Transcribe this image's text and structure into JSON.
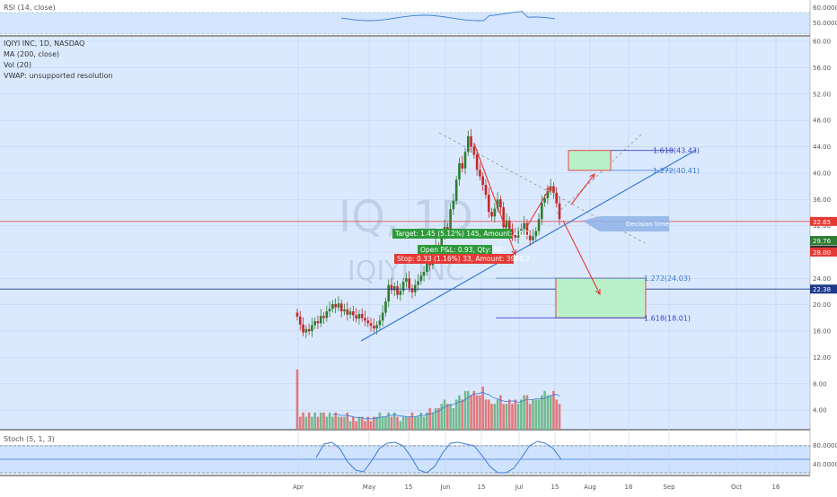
{
  "rsi_panel": {
    "label": "RSI (14, close)",
    "ticks": [
      "60.0000",
      "50.0000"
    ]
  },
  "legend": {
    "title": "IQIYI INC, 1D, NASDAQ",
    "lines": [
      "MA (200, close)",
      "Vol (20)",
      "VWAP: unsupported resolution"
    ]
  },
  "watermark": {
    "ticker": "IQ, 1D",
    "company": "IQIYI INC"
  },
  "price_ticks": [
    "60.00",
    "56.00",
    "52.00",
    "48.00",
    "44.00",
    "40.00",
    "36.00",
    "32.00",
    "28.00",
    "24.00",
    "20.00",
    "16.00",
    "12.00",
    "8.00",
    "4.00"
  ],
  "price_badges": [
    {
      "text": "32.65",
      "color": "#e53935",
      "value": 32.65
    },
    {
      "text": "29.76",
      "color": "#2e7d32",
      "value": 29.76
    },
    {
      "text": "28.33",
      "color": "#333333",
      "value": 28.33
    },
    {
      "text": "28.00",
      "color": "#e53935",
      "value": 28.0
    },
    {
      "text": "22.38",
      "color": "#1e3a8a",
      "value": 22.38
    }
  ],
  "annotations": {
    "target": "Target: 1.45 (5.12%) 145, Amount: 40.0",
    "open_pl": "Open P&L: 0.93, Qty: 60",
    "stop": "Stop: 0.33 (1.16%) 33, Amount: 3980.2",
    "decision": "Decision time",
    "fib_up_1": "1.618(43.43)",
    "fib_up_2": "1.272(40.41)",
    "fib_down_1": "1.272(24.03)",
    "fib_down_2": "1.618(18.01)"
  },
  "stoch_panel": {
    "label": "Stoch (5, 1, 3)",
    "ticks": [
      "80.0000",
      "40.0000"
    ]
  },
  "time_axis": [
    "Apr",
    "May",
    "15",
    "Jun",
    "15",
    "Jul",
    "15",
    "Aug",
    "16",
    "Sep",
    "Oct",
    "16"
  ],
  "colors": {
    "up": "#2e7d32",
    "down": "#c62828",
    "trendline": "#3a7bd5",
    "panel_bg": "#cfe3ff"
  },
  "chart_data": {
    "type": "candlestick",
    "title": "IQIYI INC, 1D, NASDAQ",
    "ylim": [
      0,
      62
    ],
    "y_ticks": [
      4,
      8,
      12,
      16,
      20,
      24,
      28,
      32,
      36,
      40,
      44,
      48,
      52,
      56,
      60
    ],
    "price_series": [
      18.2,
      17.0,
      15.8,
      16.3,
      16.0,
      16.9,
      17.5,
      17.2,
      18.3,
      18.0,
      19.0,
      19.4,
      20.1,
      19.6,
      20.2,
      19.0,
      19.3,
      18.5,
      19.0,
      18.4,
      17.9,
      18.6,
      18.0,
      17.6,
      17.2,
      16.8,
      16.4,
      16.9,
      17.6,
      18.8,
      20.5,
      23.0,
      22.2,
      22.8,
      21.5,
      22.1,
      23.5,
      24.0,
      22.5,
      21.9,
      23.0,
      23.6,
      24.4,
      25.0,
      26.5,
      26.0,
      27.8,
      28.9,
      28.1,
      30.5,
      31.8,
      31.2,
      34.5,
      35.8,
      39.0,
      41.5,
      40.7,
      43.2,
      45.6,
      44.0,
      42.8,
      40.5,
      39.5,
      38.2,
      36.7,
      34.1,
      33.4,
      34.6,
      36.0,
      34.8,
      31.8,
      32.8,
      31.5,
      30.6,
      30.2,
      31.2,
      31.5,
      32.4,
      30.5,
      29.8,
      30.4,
      31.2,
      33.0,
      35.5,
      36.2,
      37.3,
      38.0,
      37.0,
      35.4,
      33.0
    ],
    "volume_series": [
      14,
      3,
      4,
      3,
      4,
      3,
      4,
      3,
      4,
      4,
      3,
      4,
      3,
      4,
      3,
      3,
      3,
      4,
      2,
      3,
      2,
      3,
      3,
      2,
      3,
      2,
      3,
      3,
      4,
      3,
      3,
      4,
      3,
      4,
      3,
      2,
      3,
      3,
      3,
      4,
      3,
      3,
      4,
      3,
      4,
      5,
      4,
      5,
      5,
      6,
      7,
      6,
      6,
      5,
      7,
      8,
      7,
      9,
      9,
      8,
      9,
      8,
      8,
      10,
      7,
      7,
      6,
      6,
      7,
      8,
      6,
      6,
      7,
      6,
      7,
      6,
      7,
      8,
      8,
      6,
      7,
      7,
      7,
      8,
      9,
      8,
      8,
      9,
      7,
      6
    ],
    "trendline": {
      "start": 14.5,
      "end": 43.5
    },
    "targets": {
      "upper": [
        40.41,
        43.43
      ],
      "lower": [
        18.01,
        24.03
      ]
    },
    "rsi": {
      "ylim": [
        40,
        70
      ],
      "ticks": [
        50,
        60
      ]
    },
    "stoch": {
      "ylim": [
        0,
        100
      ],
      "ticks": [
        40,
        80
      ]
    }
  }
}
